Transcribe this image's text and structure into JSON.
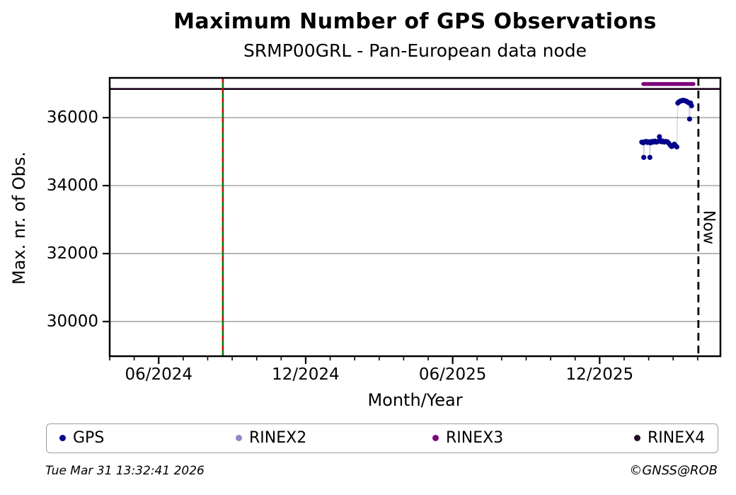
{
  "footer": {
    "timestamp": "Tue Mar 31 13:32:41 2026",
    "copyright": "©GNSS@ROB"
  },
  "chart_data": {
    "type": "scatter",
    "title": "Maximum Number of GPS Observations",
    "subtitle": "SRMP00GRL - Pan-European data node",
    "xlabel": "Month/Year",
    "ylabel": "Max. nr. of Obs.",
    "x_unit": "months since 2024-04-01",
    "xlim": [
      0,
      24.93
    ],
    "ylim": [
      28980,
      37170
    ],
    "grid": "horizontal-only",
    "colors": {
      "grid": "#b2b2b2",
      "frame": "#000000",
      "gps": "#00008b",
      "rinex2": "#8a8ac4",
      "rinex3": "#7c067c",
      "rinex4": "#220b22",
      "event_green": "#008000",
      "event_red": "#d40000"
    },
    "x_major_ticks": [
      {
        "x": 2,
        "label": "06/2024"
      },
      {
        "x": 8,
        "label": "12/2024"
      },
      {
        "x": 14,
        "label": "06/2025"
      },
      {
        "x": 20,
        "label": "12/2025"
      }
    ],
    "x_minor_tick_step": 1,
    "y_ticks": [
      {
        "value": 30000,
        "label": "30000"
      },
      {
        "value": 32000,
        "label": "32000"
      },
      {
        "value": 34000,
        "label": "34000"
      },
      {
        "value": 36000,
        "label": "36000"
      }
    ],
    "series": [
      {
        "name": "GPS",
        "color": "#00008b",
        "style": "dots",
        "points": [
          [
            21.72,
            35280
          ],
          [
            21.78,
            35260
          ],
          [
            21.8,
            34830
          ],
          [
            21.84,
            35290
          ],
          [
            21.9,
            35300
          ],
          [
            21.96,
            35270
          ],
          [
            22.02,
            35290
          ],
          [
            22.05,
            34830
          ],
          [
            22.08,
            35260
          ],
          [
            22.14,
            35300
          ],
          [
            22.2,
            35280
          ],
          [
            22.26,
            35310
          ],
          [
            22.32,
            35280
          ],
          [
            22.38,
            35300
          ],
          [
            22.44,
            35440
          ],
          [
            22.48,
            35330
          ],
          [
            22.52,
            35290
          ],
          [
            22.58,
            35310
          ],
          [
            22.64,
            35280
          ],
          [
            22.7,
            35300
          ],
          [
            22.76,
            35290
          ],
          [
            22.82,
            35250
          ],
          [
            22.88,
            35190
          ],
          [
            22.94,
            35150
          ],
          [
            23.0,
            35180
          ],
          [
            23.05,
            35220
          ],
          [
            23.1,
            35170
          ],
          [
            23.15,
            35140
          ],
          [
            23.19,
            36430
          ],
          [
            23.23,
            36460
          ],
          [
            23.27,
            36480
          ],
          [
            23.31,
            36490
          ],
          [
            23.35,
            36500
          ],
          [
            23.39,
            36510
          ],
          [
            23.43,
            36510
          ],
          [
            23.47,
            36500
          ],
          [
            23.51,
            36490
          ],
          [
            23.55,
            36480
          ],
          [
            23.59,
            36460
          ],
          [
            23.63,
            36440
          ],
          [
            23.67,
            35960
          ],
          [
            23.71,
            36430
          ],
          [
            23.75,
            36350
          ]
        ]
      },
      {
        "name": "RINEX2",
        "color": "#8a8ac4",
        "style": "dots",
        "points": []
      },
      {
        "name": "RINEX3",
        "color": "#7c067c",
        "style": "thick-line",
        "width": 5.5,
        "points": [
          [
            21.78,
            36990
          ],
          [
            23.83,
            36990
          ]
        ]
      },
      {
        "name": "RINEX4",
        "color": "#220b22",
        "style": "line",
        "width": 2.8,
        "points": [
          [
            0,
            36845
          ],
          [
            24.93,
            36845
          ]
        ]
      }
    ],
    "annotations": {
      "event_line": {
        "x": 4.62,
        "color": "#008000",
        "dash_color": "#d40000"
      },
      "now_line": {
        "x": 24.03,
        "label": "Now"
      }
    },
    "legend": {
      "position": "bottom",
      "items": [
        {
          "label": "GPS",
          "color": "#00008b"
        },
        {
          "label": "RINEX2",
          "color": "#8a8ac4"
        },
        {
          "label": "RINEX3",
          "color": "#7c067c"
        },
        {
          "label": "RINEX4",
          "color": "#220b22"
        }
      ]
    }
  }
}
